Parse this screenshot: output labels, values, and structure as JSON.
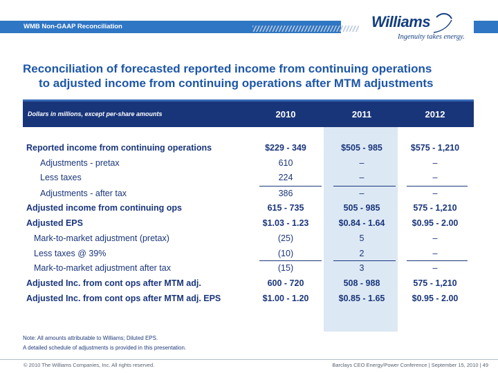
{
  "banner": {
    "title": "WMB Non-GAAP Reconciliation"
  },
  "logo": {
    "name": "Williams",
    "tagline": "Ingenuity takes energy."
  },
  "heading": {
    "line1": "Reconciliation of forecasted reported income from continuing operations",
    "line2": "to adjusted income from continuing operations after MTM adjustments"
  },
  "table": {
    "header_note": "Dollars in millions, except per-share amounts",
    "years": [
      "2010",
      "2011",
      "2012"
    ],
    "rows": [
      {
        "label": "Reported income from continuing operations",
        "values": [
          "$229 - 349",
          "$505 - 985",
          "$575 - 1,210"
        ]
      },
      {
        "label": "Adjustments - pretax",
        "values": [
          "610",
          "–",
          "–"
        ]
      },
      {
        "label": "Less taxes",
        "values": [
          "224",
          "–",
          "–"
        ]
      },
      {
        "label": "Adjustments - after tax",
        "values": [
          "386",
          "–",
          "–"
        ]
      },
      {
        "label": "Adjusted income from continuing ops",
        "values": [
          "615 - 735",
          "505 - 985",
          "575 - 1,210"
        ]
      },
      {
        "label": "Adjusted EPS",
        "values": [
          "$1.03 - 1.23",
          "$0.84 - 1.64",
          "$0.95 - 2.00"
        ]
      },
      {
        "label": "Mark-to-market adjustment (pretax)",
        "values": [
          "(25)",
          "5",
          "–"
        ]
      },
      {
        "label": "Less taxes @ 39%",
        "values": [
          "(10)",
          "2",
          "–"
        ]
      },
      {
        "label": "Mark-to-market adjustment after tax",
        "values": [
          "(15)",
          "3",
          "–"
        ]
      },
      {
        "label": "Adjusted Inc. from cont ops after MTM adj.",
        "values": [
          "600 - 720",
          "508 - 988",
          "575 - 1,210"
        ]
      },
      {
        "label": "Adjusted Inc. from cont ops after MTM adj. EPS",
        "values": [
          "$1.00 - 1.20",
          "$0.85 - 1.65",
          "$0.95 - 2.00"
        ]
      }
    ]
  },
  "notes": [
    "Note: All amounts attributable to Williams; Diluted EPS.",
    "A detailed schedule of adjustments is provided in this presentation."
  ],
  "footer": {
    "copyright": "© 2010 The Williams Companies, Inc. All rights reserved.",
    "event": "Barclays CEO Energy/Power Conference  | September 15, 2010  |  49"
  },
  "colors": {
    "banner": "#2f76c4",
    "header": "#19357a",
    "shade": "#dce8f4",
    "text": "#19357a"
  }
}
